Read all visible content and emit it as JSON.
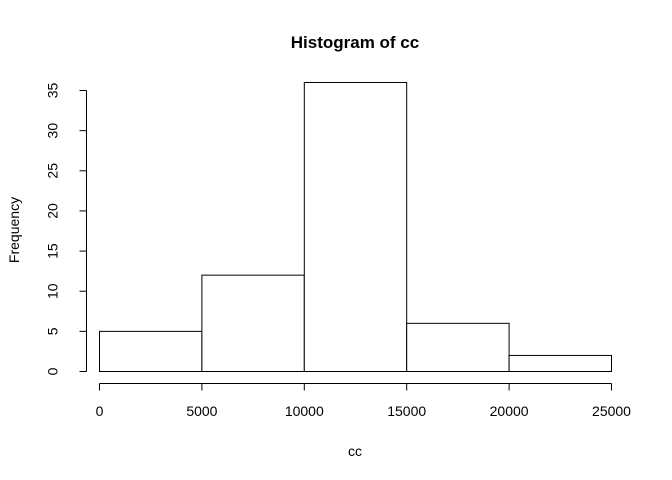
{
  "chart_data": {
    "type": "bar",
    "title": "Histogram of cc",
    "xlabel": "cc",
    "ylabel": "Frequency",
    "bins": [
      {
        "start": 0,
        "end": 5000,
        "count": 5
      },
      {
        "start": 5000,
        "end": 10000,
        "count": 12
      },
      {
        "start": 10000,
        "end": 15000,
        "count": 36
      },
      {
        "start": 15000,
        "end": 20000,
        "count": 6
      },
      {
        "start": 20000,
        "end": 25000,
        "count": 2
      }
    ],
    "xlim": [
      0,
      25000
    ],
    "ylim": [
      0,
      35
    ],
    "xticks": [
      0,
      5000,
      10000,
      15000,
      20000,
      25000
    ],
    "yticks": [
      0,
      5,
      10,
      15,
      20,
      25,
      30,
      35
    ],
    "grid": false
  }
}
